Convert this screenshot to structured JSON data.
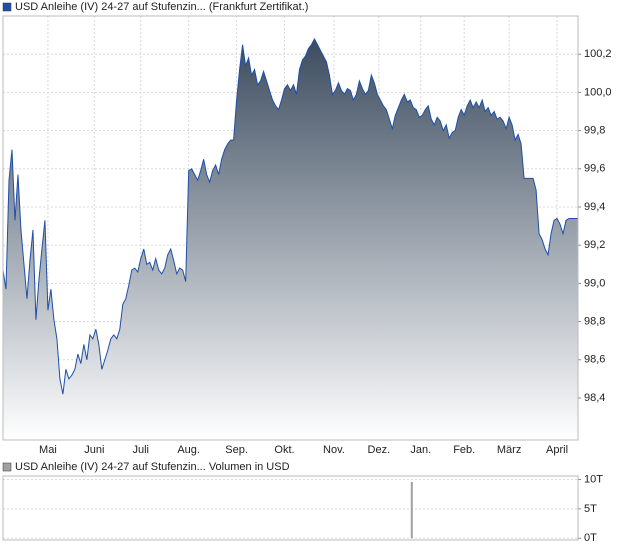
{
  "chart_data": [
    {
      "type": "area",
      "xlim": [
        0,
        384
      ],
      "xticks": [
        {
          "value": 30,
          "label": "Mai"
        },
        {
          "value": 61,
          "label": "Juni"
        },
        {
          "value": 92,
          "label": "Juli"
        },
        {
          "value": 124,
          "label": "Aug."
        },
        {
          "value": 156,
          "label": "Sep."
        },
        {
          "value": 188,
          "label": "Okt."
        },
        {
          "value": 221,
          "label": "Nov."
        },
        {
          "value": 251,
          "label": "Dez."
        },
        {
          "value": 279,
          "label": "Jan."
        },
        {
          "value": 308,
          "label": "Feb."
        },
        {
          "value": 338,
          "label": "März"
        },
        {
          "value": 370,
          "label": "April"
        }
      ],
      "ylim": [
        98.18,
        100.4
      ],
      "yticks": [
        {
          "value": 98.4,
          "label": "98,4"
        },
        {
          "value": 98.6,
          "label": "98,6"
        },
        {
          "value": 98.8,
          "label": "98,8"
        },
        {
          "value": 99.0,
          "label": "99,0"
        },
        {
          "value": 99.2,
          "label": "99,2"
        },
        {
          "value": 99.4,
          "label": "99,4"
        },
        {
          "value": 99.6,
          "label": "99,6"
        },
        {
          "value": 99.8,
          "label": "99,8"
        },
        {
          "value": 100.0,
          "label": "100,0"
        },
        {
          "value": 100.2,
          "label": "100,2"
        }
      ],
      "grid": true,
      "fill_top": "#3c4c5f",
      "fill_bottom": "#ffffff",
      "x": [
        0,
        2,
        4,
        6,
        8,
        10,
        12,
        14,
        16,
        18,
        20,
        22,
        24,
        26,
        28,
        30,
        32,
        34,
        36,
        38,
        40,
        42,
        44,
        46,
        48,
        50,
        52,
        54,
        56,
        58,
        60,
        62,
        64,
        66,
        68,
        70,
        72,
        74,
        76,
        78,
        80,
        82,
        84,
        86,
        88,
        90,
        92,
        94,
        96,
        98,
        100,
        102,
        104,
        106,
        108,
        110,
        112,
        114,
        116,
        118,
        120,
        122,
        124,
        126,
        128,
        130,
        132,
        134,
        136,
        138,
        140,
        142,
        144,
        146,
        148,
        150,
        152,
        154,
        156,
        158,
        160,
        162,
        164,
        166,
        168,
        170,
        172,
        174,
        176,
        178,
        180,
        182,
        184,
        186,
        188,
        190,
        192,
        194,
        196,
        198,
        200,
        202,
        204,
        206,
        208,
        210,
        212,
        214,
        216,
        218,
        220,
        222,
        224,
        226,
        228,
        230,
        232,
        234,
        236,
        238,
        240,
        242,
        244,
        246,
        248,
        250,
        252,
        254,
        256,
        258,
        260,
        262,
        264,
        266,
        268,
        270,
        272,
        274,
        276,
        278,
        280,
        282,
        284,
        286,
        288,
        290,
        292,
        294,
        296,
        298,
        300,
        302,
        304,
        306,
        308,
        310,
        312,
        314,
        316,
        318,
        320,
        322,
        324,
        326,
        328,
        330,
        332,
        334,
        336,
        338,
        340,
        342,
        344,
        346,
        348,
        350,
        352,
        354,
        356,
        358,
        360,
        362,
        364,
        366,
        368,
        370,
        372,
        374,
        376,
        378,
        380,
        382,
        384
      ],
      "series": [
        {
          "name": "USD Anleihe (IV) 24-27 auf Stufenzin... (Frankfurt Zertifikat.)",
          "color": "#1f4fa8",
          "values": [
            99.07,
            98.97,
            99.54,
            99.7,
            99.33,
            99.57,
            99.28,
            99.1,
            98.92,
            99.12,
            99.28,
            98.81,
            99.02,
            99.18,
            99.33,
            98.86,
            98.97,
            98.81,
            98.71,
            98.5,
            98.42,
            98.55,
            98.5,
            98.52,
            98.55,
            98.63,
            98.58,
            98.68,
            98.6,
            98.73,
            98.71,
            98.76,
            98.68,
            98.55,
            98.6,
            98.65,
            98.71,
            98.73,
            98.71,
            98.76,
            98.89,
            98.92,
            98.99,
            99.07,
            99.08,
            99.06,
            99.13,
            99.18,
            99.1,
            99.11,
            99.07,
            99.13,
            99.07,
            99.05,
            99.08,
            99.15,
            99.18,
            99.12,
            99.05,
            99.08,
            99.07,
            99.01,
            99.59,
            99.6,
            99.57,
            99.54,
            99.59,
            99.65,
            99.57,
            99.53,
            99.59,
            99.62,
            99.57,
            99.65,
            99.7,
            99.73,
            99.75,
            99.75,
            99.96,
            100.12,
            100.25,
            100.14,
            100.18,
            100.09,
            100.12,
            100.04,
            100.06,
            100.11,
            100.06,
            100.01,
            99.96,
            99.93,
            99.91,
            99.96,
            100.02,
            100.04,
            100.01,
            100.04,
            99.99,
            100.12,
            100.17,
            100.19,
            100.23,
            100.25,
            100.28,
            100.25,
            100.22,
            100.19,
            100.16,
            100.09,
            99.99,
            100.01,
            100.05,
            100.01,
            99.99,
            100.02,
            100.01,
            99.96,
            99.99,
            100.06,
            100.02,
            99.99,
            100.01,
            100.09,
            100.05,
            99.99,
            99.96,
            99.93,
            99.91,
            99.86,
            99.81,
            99.88,
            99.92,
            99.96,
            99.99,
            99.95,
            99.96,
            99.92,
            99.91,
            99.87,
            99.88,
            99.91,
            99.93,
            99.86,
            99.83,
            99.87,
            99.85,
            99.8,
            99.83,
            99.76,
            99.79,
            99.8,
            99.87,
            99.91,
            99.88,
            99.93,
            99.96,
            99.92,
            99.95,
            99.92,
            99.96,
            99.9,
            99.92,
            99.88,
            99.9,
            99.86,
            99.87,
            99.85,
            99.81,
            99.87,
            99.83,
            99.75,
            99.78,
            99.73,
            99.55,
            99.55,
            99.55,
            99.55,
            99.49,
            99.26,
            99.23,
            99.18,
            99.15,
            99.26,
            99.33,
            99.34,
            99.31,
            99.26,
            99.33,
            99.34,
            99.34,
            99.34,
            99.34
          ]
        }
      ]
    },
    {
      "type": "bar",
      "xlim": [
        0,
        384
      ],
      "ylim": [
        -300,
        10600
      ],
      "yticks": [
        {
          "value": 0,
          "label": "0T"
        },
        {
          "value": 5000,
          "label": "5T"
        },
        {
          "value": 10000,
          "label": "10T"
        }
      ],
      "grid": true,
      "x": [
        273
      ],
      "series": [
        {
          "name": "USD Anleihe (IV) 24-27 auf Stufenzin... Volumen in USD",
          "color": "#a0a0a0",
          "values": [
            9600
          ]
        }
      ]
    }
  ]
}
